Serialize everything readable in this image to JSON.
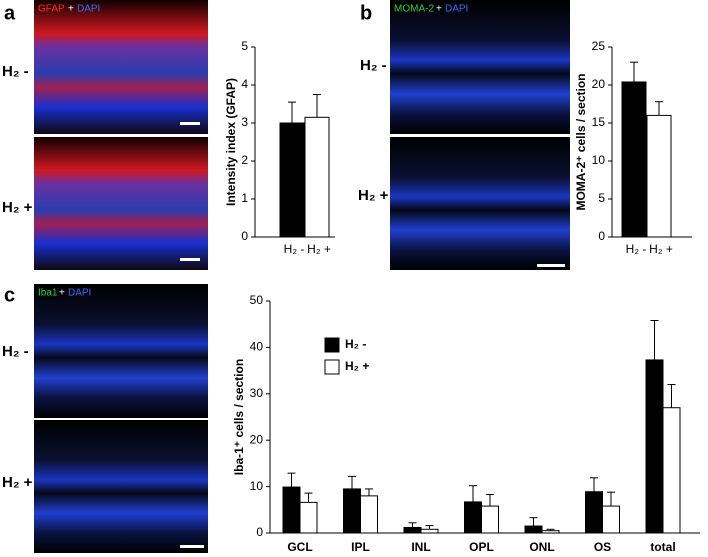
{
  "panels": [
    {
      "letter": "a",
      "stain": "GFAP",
      "plus": "+",
      "counterstain": "DAPI",
      "labels": [
        "H₂ -",
        "H₂ +"
      ]
    },
    {
      "letter": "b",
      "stain": "MOMA-2",
      "plus": "+",
      "counterstain": "DAPI",
      "labels": [
        "H₂ -",
        "H₂ +"
      ]
    },
    {
      "letter": "c",
      "stain": "Iba1",
      "plus": "+",
      "counterstain": "DAPI",
      "labels": [
        "H₂ -",
        "H₂ +"
      ]
    }
  ],
  "chart_data": [
    {
      "type": "bar",
      "y_label": "Intensity index (GFAP)",
      "categories": [
        "H₂ -",
        "H₂ +"
      ],
      "values": [
        3.0,
        3.15
      ],
      "errors": [
        0.55,
        0.6
      ],
      "colors": [
        "#000000",
        "#ffffff"
      ],
      "ylim": [
        0,
        5
      ],
      "yticks": [
        0,
        1,
        2,
        3,
        4,
        5
      ]
    },
    {
      "type": "bar",
      "y_label": "MOMA-2⁺ cells / section",
      "categories": [
        "H₂ -",
        "H₂ +"
      ],
      "values": [
        20.4,
        16.0
      ],
      "errors": [
        2.6,
        1.8
      ],
      "colors": [
        "#000000",
        "#ffffff"
      ],
      "ylim": [
        0,
        25
      ],
      "yticks": [
        0,
        5,
        10,
        15,
        20,
        25
      ]
    },
    {
      "type": "grouped-bar",
      "y_label": "Iba-1⁺ cells / section",
      "categories": [
        "GCL",
        "IPL",
        "INL",
        "OPL",
        "ONL",
        "OS",
        "total"
      ],
      "series": [
        {
          "name": "H₂ -",
          "color": "#000000",
          "values": [
            9.9,
            9.5,
            1.2,
            6.7,
            1.5,
            8.9,
            37.3
          ],
          "errors": [
            3.0,
            2.7,
            1.0,
            3.5,
            1.8,
            3.0,
            8.5
          ]
        },
        {
          "name": "H₂ +",
          "color": "#ffffff",
          "values": [
            6.6,
            8.0,
            0.8,
            5.8,
            0.5,
            5.8,
            27.0
          ],
          "errors": [
            2.0,
            1.5,
            0.8,
            2.5,
            0.3,
            3.0,
            5.0
          ]
        }
      ],
      "ylim": [
        0,
        50
      ],
      "yticks": [
        0,
        10,
        20,
        30,
        40,
        50
      ],
      "legend": "upper-left"
    }
  ]
}
